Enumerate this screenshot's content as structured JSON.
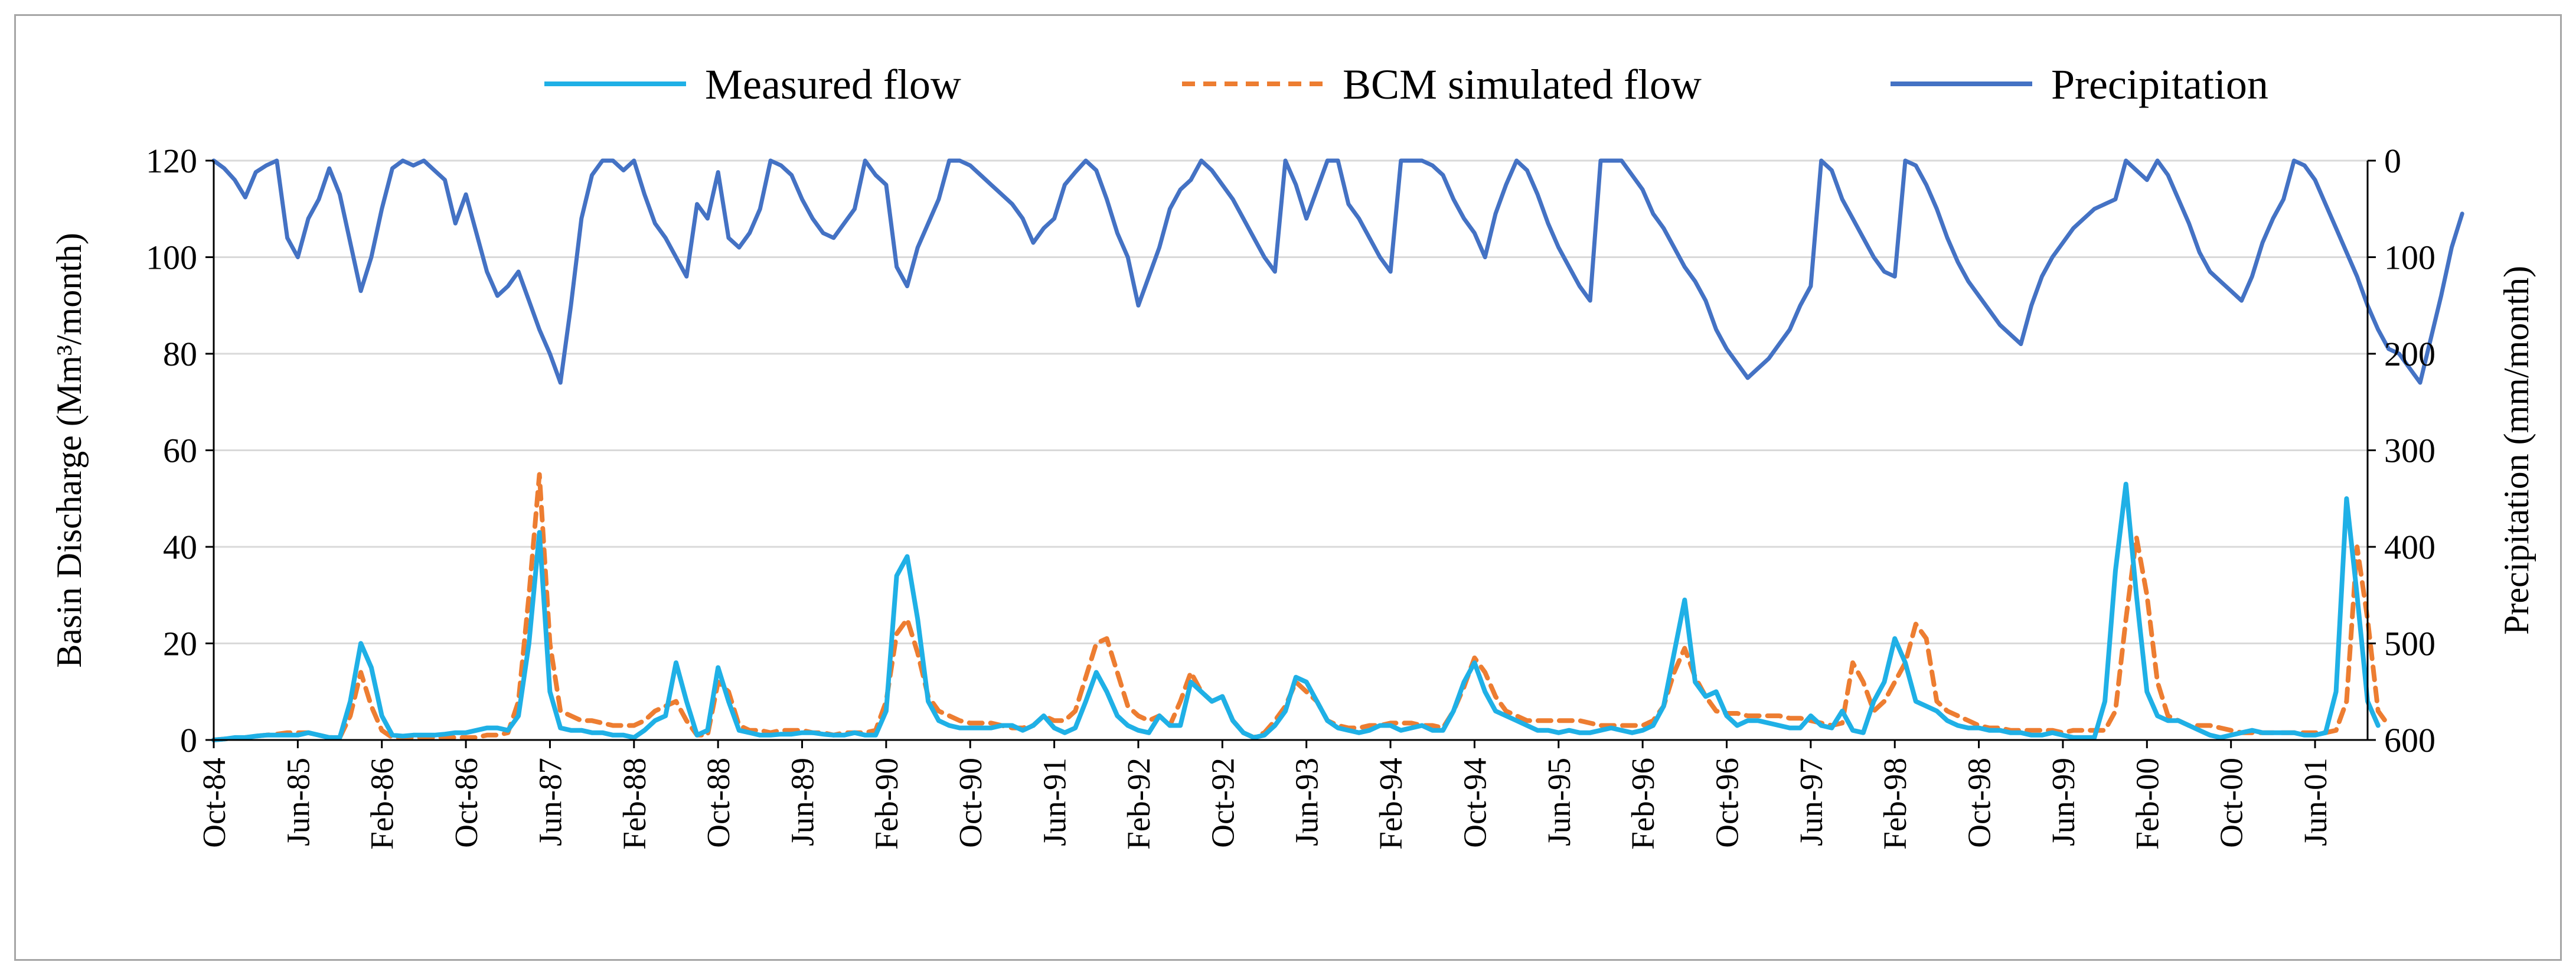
{
  "chart_data": {
    "type": "line",
    "xlabel": "",
    "ylabel": "Basin Discharge (Mm³/month)",
    "y2label": "Precipitation (mm/month)",
    "ylim": [
      0,
      120
    ],
    "y2lim": [
      600,
      0
    ],
    "y_ticks": [
      "0",
      "20",
      "40",
      "60",
      "80",
      "100",
      "120"
    ],
    "y2_ticks": [
      "600",
      "500",
      "400",
      "300",
      "200",
      "100",
      "0"
    ],
    "x_tick_labels": [
      "Oct-84",
      "Jun-85",
      "Feb-86",
      "Oct-86",
      "Jun-87",
      "Feb-88",
      "Oct-88",
      "Jun-89",
      "Feb-90",
      "Oct-90",
      "Jun-91",
      "Feb-92",
      "Oct-92",
      "Jun-93",
      "Feb-94",
      "Oct-94",
      "Jun-95",
      "Feb-96",
      "Oct-96",
      "Jun-97",
      "Feb-98",
      "Oct-98",
      "Jun-99",
      "Feb-00",
      "Oct-00",
      "Jun-01"
    ],
    "x_start": "Oct-84",
    "n_months": 206,
    "legend_position": "top",
    "series": [
      {
        "name": "Measured flow",
        "axis": "left",
        "color": "#1fb0e6",
        "style": "solid",
        "values": [
          0,
          0.2,
          0.5,
          0.5,
          0.8,
          1,
          1,
          1,
          1,
          1.5,
          1,
          0.5,
          0.5,
          8,
          20,
          15,
          5,
          1,
          0.8,
          1,
          1,
          1,
          1.2,
          1.5,
          1.5,
          2,
          2.5,
          2.5,
          2,
          5,
          20,
          43,
          10,
          2.5,
          2,
          2,
          1.5,
          1.5,
          1,
          1,
          0.5,
          2,
          4,
          5,
          16,
          8,
          1,
          2,
          15,
          8,
          2,
          1.5,
          1,
          1,
          1.2,
          1.2,
          1.5,
          1.5,
          1.2,
          1,
          1,
          1.5,
          1,
          1,
          6,
          34,
          38,
          25,
          8,
          4,
          3,
          2.5,
          2.5,
          2.5,
          2.5,
          3,
          3,
          2,
          3,
          5,
          2.5,
          1.5,
          2.5,
          8,
          14,
          10,
          5,
          3,
          2,
          1.5,
          5,
          3,
          3,
          12,
          10,
          8,
          9,
          4,
          1.5,
          0.5,
          1,
          3,
          6,
          13,
          12,
          8,
          4,
          2.5,
          2,
          1.5,
          2,
          3,
          3,
          2,
          2.5,
          3,
          2,
          2,
          6,
          12,
          16,
          10,
          6,
          5,
          4,
          3,
          2,
          2,
          1.5,
          2,
          1.5,
          1.5,
          2,
          2.5,
          2,
          1.5,
          2,
          3,
          7,
          18,
          29,
          12,
          9,
          10,
          5,
          3,
          4,
          4,
          3.5,
          3,
          2.5,
          2.5,
          5,
          3,
          2.5,
          6,
          2,
          1.5,
          8,
          12,
          21,
          16,
          8,
          7,
          6,
          4,
          3,
          2.5,
          2.5,
          2,
          2,
          1.5,
          1.5,
          1,
          1,
          1.5,
          1,
          0.5,
          0.5,
          0.5,
          8,
          35,
          53,
          30,
          10,
          5,
          4,
          4,
          3,
          2,
          1,
          0.5,
          1,
          1.5,
          2,
          1.5,
          1.5,
          1.5,
          1.5,
          1,
          1,
          1.5,
          10,
          50,
          30,
          8,
          3
        ]
      },
      {
        "name": "BCM simulated flow",
        "axis": "left",
        "color": "#ed7d31",
        "style": "dashed",
        "values": [
          0,
          0.2,
          0.4,
          0.5,
          0.8,
          1,
          1.2,
          1.5,
          1.5,
          1.5,
          1,
          0.5,
          0.5,
          5,
          14,
          7,
          2,
          0.5,
          0.5,
          0.5,
          0.5,
          0.5,
          0.5,
          0.5,
          0.5,
          0.5,
          1,
          1,
          1.5,
          8,
          30,
          55,
          20,
          6,
          5,
          4,
          4,
          3.5,
          3,
          3,
          3,
          4,
          6,
          7,
          8,
          4,
          1,
          1,
          12,
          10,
          3,
          2,
          2,
          1.5,
          2,
          2,
          2,
          1.5,
          1.5,
          1,
          1.5,
          1.5,
          1.5,
          2,
          8,
          22,
          25,
          18,
          9,
          6,
          5,
          4,
          3.5,
          3.5,
          3.5,
          3,
          2.5,
          2.5,
          3,
          5,
          4,
          4,
          6,
          13,
          20,
          21,
          14,
          7,
          5,
          4,
          5,
          3,
          8,
          14,
          10,
          8,
          9,
          4,
          1.5,
          0.5,
          1.5,
          4,
          7,
          12,
          10,
          8,
          4,
          3,
          2.5,
          2.5,
          3,
          3,
          3.5,
          3.5,
          3.5,
          3,
          3,
          2.5,
          6,
          11,
          17,
          14,
          9,
          6,
          5,
          4,
          4,
          4,
          4,
          4,
          4,
          3.5,
          3,
          3,
          3,
          3,
          3,
          4,
          7,
          14,
          19,
          13,
          9,
          6,
          5.5,
          5.5,
          5,
          5,
          5,
          5,
          4.5,
          4.5,
          4,
          3.5,
          3,
          3.5,
          16,
          12,
          6,
          8,
          12,
          16,
          24,
          21,
          8,
          6,
          5,
          4,
          3,
          2.5,
          2.5,
          2,
          2,
          2,
          2,
          2,
          1.5,
          2,
          2,
          2,
          2,
          6,
          25,
          42,
          30,
          12,
          5,
          4,
          3,
          3,
          3,
          2.5,
          2,
          1.5,
          1.5,
          1.5,
          1.5,
          1.5,
          1.5,
          1.5,
          1.5,
          1.5,
          2,
          8,
          40,
          25,
          6,
          3
        ]
      },
      {
        "name": "Precipitation",
        "axis": "right",
        "color": "#4472c4",
        "style": "solid",
        "values": [
          0,
          8,
          20,
          38,
          12,
          5,
          0,
          80,
          100,
          60,
          40,
          8,
          35,
          85,
          135,
          100,
          50,
          8,
          0,
          5,
          0,
          10,
          20,
          65,
          35,
          75,
          115,
          140,
          130,
          115,
          145,
          175,
          200,
          230,
          150,
          60,
          15,
          0,
          0,
          10,
          0,
          35,
          65,
          80,
          100,
          120,
          45,
          60,
          12,
          80,
          90,
          75,
          50,
          0,
          5,
          15,
          40,
          60,
          75,
          80,
          65,
          50,
          0,
          15,
          25,
          110,
          130,
          90,
          65,
          40,
          0,
          0,
          5,
          15,
          25,
          35,
          45,
          60,
          85,
          70,
          60,
          25,
          12,
          0,
          10,
          40,
          75,
          100,
          150,
          120,
          90,
          50,
          30,
          20,
          0,
          10,
          25,
          40,
          60,
          80,
          100,
          115,
          0,
          25,
          60,
          30,
          0,
          0,
          45,
          60,
          80,
          100,
          115,
          0,
          0,
          0,
          5,
          15,
          40,
          60,
          75,
          100,
          55,
          25,
          0,
          10,
          35,
          65,
          90,
          110,
          130,
          145,
          0,
          0,
          0,
          15,
          30,
          55,
          70,
          90,
          110,
          125,
          145,
          175,
          195,
          210,
          225,
          215,
          205,
          190,
          175,
          150,
          130,
          0,
          10,
          40,
          60,
          80,
          100,
          115,
          120,
          0,
          5,
          25,
          50,
          80,
          105,
          125,
          140,
          155,
          170,
          180,
          190,
          150,
          120,
          100,
          85,
          70,
          60,
          50,
          45,
          40,
          0,
          10,
          20,
          0,
          15,
          40,
          65,
          95,
          115,
          125,
          135,
          145,
          120,
          85,
          60,
          40,
          0,
          5,
          20,
          45,
          70,
          95,
          120,
          150,
          175,
          195,
          200,
          215,
          230,
          185,
          140,
          90,
          55
        ]
      }
    ]
  }
}
